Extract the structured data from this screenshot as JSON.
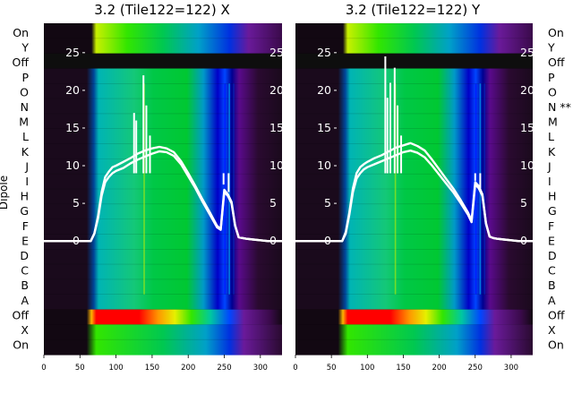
{
  "ylabel": "Dipole",
  "row_labels": [
    "On",
    "Y",
    "Off",
    "P",
    "O",
    "N",
    "M",
    "L",
    "K",
    "J",
    "I",
    "H",
    "G",
    "F",
    "E",
    "D",
    "C",
    "B",
    "A",
    "Off",
    "X",
    "On"
  ],
  "right_row_labels": [
    "On",
    "Y",
    "Off",
    "P",
    "O",
    "N **",
    "M",
    "L",
    "K",
    "J",
    "I",
    "H",
    "G",
    "F",
    "E",
    "D",
    "C",
    "B",
    "A",
    "Off",
    "X",
    "On"
  ],
  "x_ticks": [
    "0",
    "50",
    "100",
    "150",
    "200",
    "250",
    "300"
  ],
  "overlay_y_ticks": [
    "0",
    "5",
    "10",
    "15",
    "20",
    "25"
  ],
  "colors": {
    "line": "#ffffff",
    "band_bg": "#1a0a1c",
    "off_band": "#0e0e0e",
    "cmap": [
      "#000000",
      "#3a0a5a",
      "#0000c8",
      "#0070ff",
      "#00c8c8",
      "#00c850",
      "#32e600",
      "#c8f000",
      "#ffe600",
      "#ff7800",
      "#ff0000"
    ]
  },
  "chart_data": [
    {
      "type": "line",
      "title": "3.2 (Tile122=122) X",
      "x_range": [
        0,
        330
      ],
      "overlay_ylim": [
        -2,
        27
      ],
      "series": [
        {
          "x": [
            0,
            65,
            70,
            75,
            80,
            85,
            90,
            95,
            100,
            110,
            120,
            130,
            140,
            150,
            160,
            170,
            180,
            190,
            200,
            210,
            220,
            230,
            240,
            245,
            250,
            255,
            260,
            265,
            270,
            275,
            280,
            290,
            300,
            310,
            320,
            330
          ],
          "y": [
            0,
            0,
            1,
            3,
            6,
            7.8,
            8.5,
            9,
            9.3,
            9.7,
            10.3,
            10.8,
            11.2,
            11.6,
            11.9,
            11.8,
            11.3,
            10.2,
            8.6,
            7,
            5.2,
            3.5,
            1.8,
            1.5,
            6.5,
            6,
            5,
            2,
            0.5,
            0.4,
            0.3,
            0.2,
            0.1,
            0,
            0,
            0
          ]
        },
        {
          "x": [
            0,
            65,
            70,
            75,
            80,
            85,
            90,
            95,
            100,
            110,
            120,
            130,
            140,
            150,
            160,
            170,
            180,
            190,
            200,
            210,
            220,
            230,
            240,
            245,
            250,
            255,
            260,
            265,
            270,
            275,
            280,
            290,
            300,
            310,
            320,
            330
          ],
          "y": [
            0,
            0,
            1,
            3.3,
            6.5,
            8.5,
            9.2,
            9.8,
            10,
            10.5,
            11,
            11.6,
            12,
            12.3,
            12.5,
            12.3,
            11.8,
            10.6,
            9,
            7.3,
            5.5,
            3.8,
            2,
            1.6,
            6.8,
            6.2,
            5.2,
            2.1,
            0.5,
            0.4,
            0.3,
            0.2,
            0.1,
            0,
            0,
            0
          ]
        }
      ],
      "spikes": [
        {
          "x": 125,
          "y": 17
        },
        {
          "x": 128,
          "y": 16
        },
        {
          "x": 138,
          "y": 22
        },
        {
          "x": 142,
          "y": 18
        },
        {
          "x": 147,
          "y": 14
        },
        {
          "x": 249,
          "y": 7.5
        },
        {
          "x": 256,
          "y": 6.5
        }
      ]
    },
    {
      "type": "line",
      "title": "3.2 (Tile122=122) Y",
      "x_range": [
        0,
        330
      ],
      "overlay_ylim": [
        -2,
        27
      ],
      "series": [
        {
          "x": [
            0,
            65,
            70,
            75,
            80,
            85,
            90,
            95,
            100,
            110,
            120,
            130,
            140,
            150,
            160,
            170,
            180,
            190,
            200,
            210,
            220,
            230,
            240,
            245,
            250,
            255,
            260,
            265,
            270,
            275,
            280,
            290,
            300,
            310,
            320,
            330
          ],
          "y": [
            0,
            0,
            1,
            3.5,
            6.5,
            8.3,
            9,
            9.5,
            9.8,
            10.2,
            10.6,
            11,
            11.4,
            11.8,
            12,
            11.7,
            11.1,
            10,
            8.8,
            7.6,
            6.4,
            5,
            3.5,
            2.5,
            7.5,
            7,
            6,
            2.3,
            0.6,
            0.4,
            0.3,
            0.2,
            0.1,
            0,
            0,
            0
          ]
        },
        {
          "x": [
            0,
            65,
            70,
            75,
            80,
            85,
            90,
            95,
            100,
            110,
            120,
            130,
            140,
            150,
            160,
            170,
            180,
            190,
            200,
            210,
            220,
            230,
            240,
            245,
            250,
            255,
            260,
            265,
            270,
            275,
            280,
            290,
            300,
            310,
            320,
            330
          ],
          "y": [
            0,
            0,
            1.2,
            3.8,
            7,
            9,
            9.8,
            10.2,
            10.5,
            11,
            11.4,
            11.9,
            12.4,
            12.7,
            13,
            12.6,
            12,
            10.8,
            9.5,
            8.2,
            6.9,
            5.4,
            3.8,
            2.7,
            7.8,
            7.3,
            6.2,
            2.4,
            0.6,
            0.4,
            0.3,
            0.2,
            0.1,
            0,
            0,
            0
          ]
        }
      ],
      "spikes": [
        {
          "x": 125,
          "y": 24.5
        },
        {
          "x": 128,
          "y": 19
        },
        {
          "x": 132,
          "y": 21
        },
        {
          "x": 138,
          "y": 23
        },
        {
          "x": 142,
          "y": 18
        },
        {
          "x": 147,
          "y": 14
        },
        {
          "x": 250,
          "y": 8
        },
        {
          "x": 257,
          "y": 7
        }
      ]
    }
  ]
}
